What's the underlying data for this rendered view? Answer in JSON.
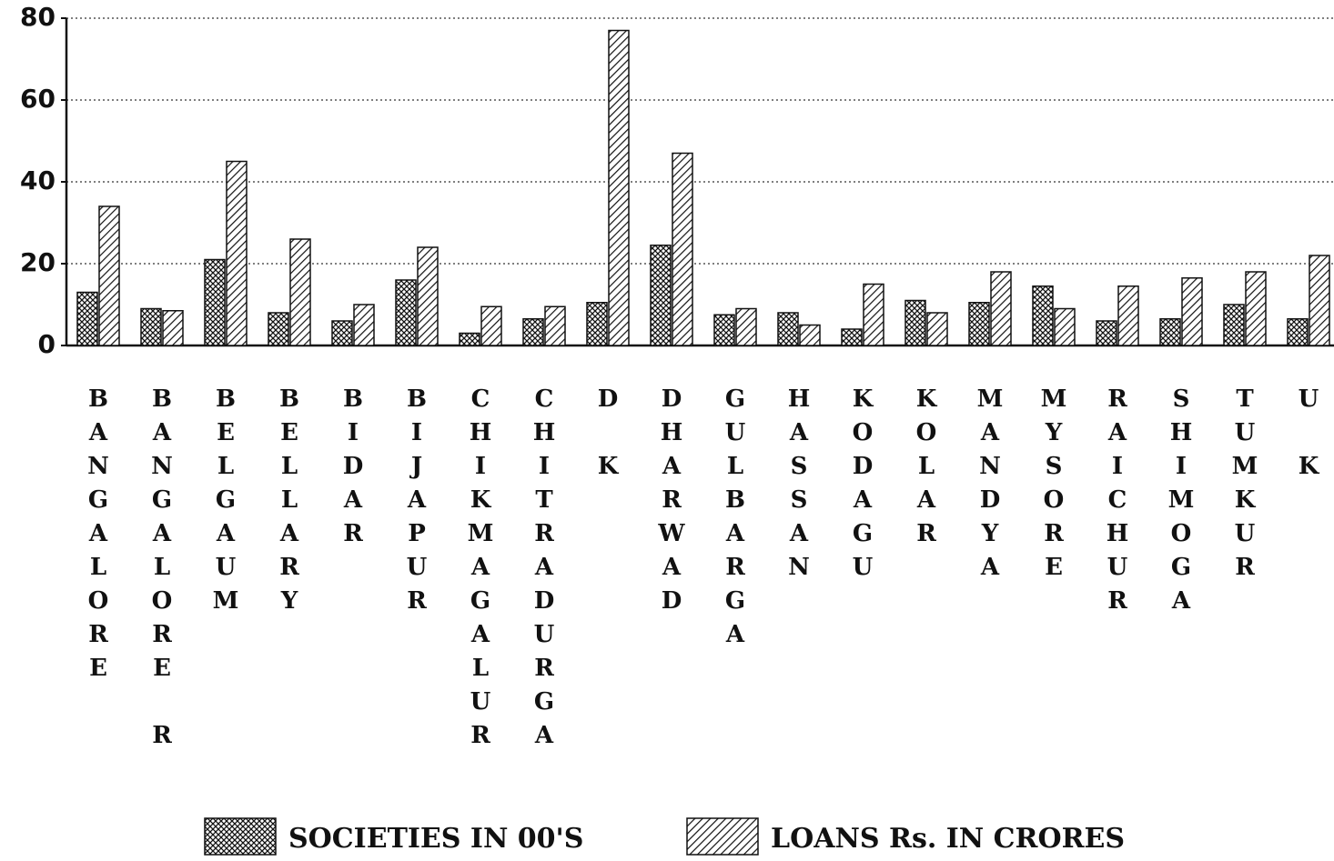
{
  "chart_data": {
    "type": "bar",
    "categories": [
      "BANGALORE",
      "BANGALORE R",
      "BELGAUM",
      "BELLARY",
      "BIDAR",
      "BIJAPUR",
      "CHIKMAGALUR",
      "CHITRADURGA",
      "D K",
      "DHARWAD",
      "GULBARGA",
      "HASSAN",
      "KODAGU",
      "KOLAR",
      "MANDYA",
      "MYSORE",
      "RAICHUR",
      "SHIMOGA",
      "TUMKUR",
      "U K"
    ],
    "series": [
      {
        "name": "SOCIETIES IN 00'S",
        "values": [
          13,
          9,
          21,
          8,
          6,
          16,
          3,
          6.5,
          10.5,
          24.5,
          7.5,
          8,
          4,
          11,
          10.5,
          14.5,
          6,
          6.5,
          10,
          6.5
        ]
      },
      {
        "name": "LOANS Rs. IN CRORES",
        "values": [
          34,
          8.5,
          45,
          26,
          10,
          24,
          9.5,
          9.5,
          77,
          47,
          9,
          5,
          15,
          8,
          18,
          9,
          14.5,
          16.5,
          18,
          22
        ]
      }
    ],
    "ylim": [
      0,
      80
    ],
    "yticks": [
      0,
      20,
      40,
      60,
      80
    ],
    "grid": true
  }
}
